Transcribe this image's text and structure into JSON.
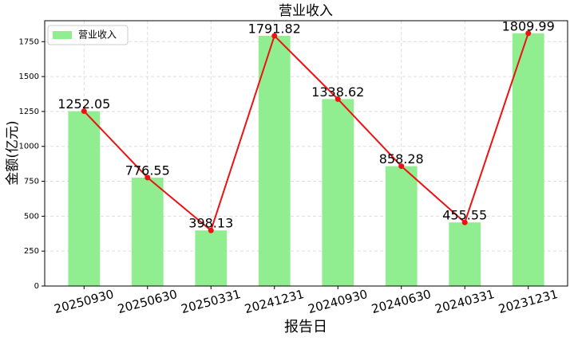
{
  "chart_data": {
    "type": "bar_line",
    "title": "营业收入",
    "x_label": "报告日",
    "y_label": "金额(亿元)",
    "categories": [
      "20250930",
      "20250630",
      "20250331",
      "20241231",
      "20240930",
      "20240630",
      "20240331",
      "20231231"
    ],
    "series": [
      {
        "name": "营业收入",
        "color": "#90ee90",
        "line_color": "#ee1111",
        "values": [
          1252.05,
          776.55,
          398.13,
          1791.82,
          1338.62,
          858.28,
          455.55,
          1809.99
        ]
      }
    ],
    "ylim": [
      0,
      1900
    ],
    "yticks": [
      0,
      250,
      500,
      750,
      1000,
      1250,
      1500,
      1750
    ],
    "grid": true,
    "legend": "upper left"
  }
}
